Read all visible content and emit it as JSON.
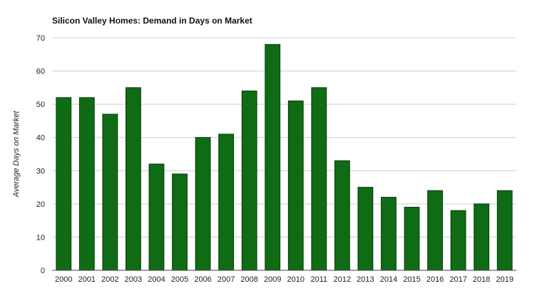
{
  "chart_data": {
    "type": "bar",
    "title": "Silicon Valley Homes: Demand in Days on Market",
    "xlabel": "",
    "ylabel": "Average Days on Market",
    "categories": [
      "2000",
      "2001",
      "2002",
      "2003",
      "2004",
      "2005",
      "2006",
      "2007",
      "2008",
      "2009",
      "2010",
      "2011",
      "2012",
      "2013",
      "2014",
      "2015",
      "2016",
      "2017",
      "2018",
      "2019"
    ],
    "values": [
      52,
      52,
      47,
      55,
      32,
      29,
      40,
      41,
      54,
      68,
      51,
      55,
      33,
      25,
      22,
      19,
      24,
      18,
      20,
      24
    ],
    "ylim": [
      0,
      70
    ],
    "yticks": [
      0,
      10,
      20,
      30,
      40,
      50,
      60,
      70
    ],
    "grid": true,
    "legend": "none",
    "colors": {
      "bar": "#0f6b14",
      "bar_edge": "#053d08",
      "grid": "#cccccc",
      "axis": "#444444"
    }
  }
}
